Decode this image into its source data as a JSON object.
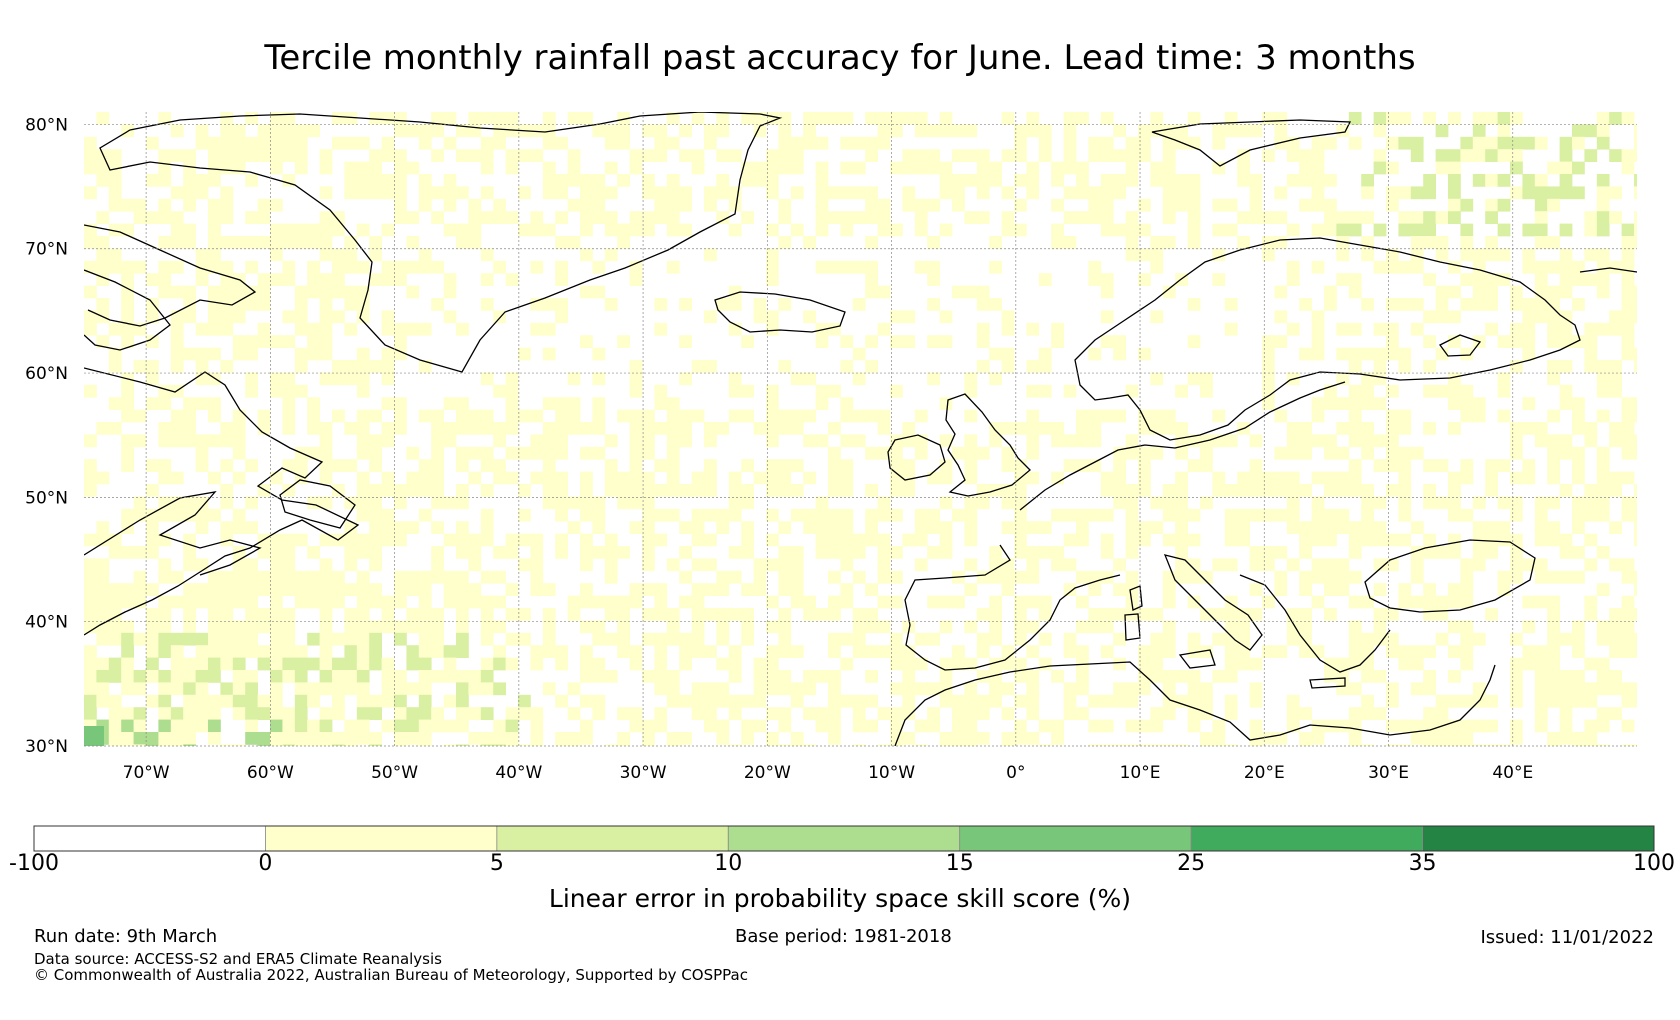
{
  "title": "Tercile monthly rainfall past accuracy for June. Lead time: 3 months",
  "map": {
    "lat_labels": [
      "80°N",
      "70°N",
      "60°N",
      "50°N",
      "40°N",
      "30°N"
    ],
    "lon_labels": [
      "70°W",
      "60°W",
      "50°W",
      "40°W",
      "30°W",
      "20°W",
      "10°W",
      "0°",
      "10°E",
      "20°E",
      "30°E",
      "40°E"
    ],
    "lat_range": [
      30,
      81
    ],
    "lon_range": [
      -75,
      50
    ]
  },
  "colorbar": {
    "ticks": [
      "-100",
      "0",
      "5",
      "10",
      "15",
      "25",
      "35",
      "100"
    ],
    "colors": [
      "#ffffff",
      "#ffffcc",
      "#d9f0a3",
      "#addd8e",
      "#78c679",
      "#41ab5d",
      "#238443"
    ],
    "label": "Linear error in probability space skill score (%)"
  },
  "footer": {
    "run_date": "Run date: 9th March",
    "base_period": "Base period: 1981-2018",
    "issued": "Issued: 11/01/2022",
    "data_source": "Data source: ACCESS-S2 and ERA5 Climate Reanalysis",
    "copyright": "© Commonwealth of Australia 2022, Australian Bureau of Meteorology, Supported by COSPPac"
  }
}
